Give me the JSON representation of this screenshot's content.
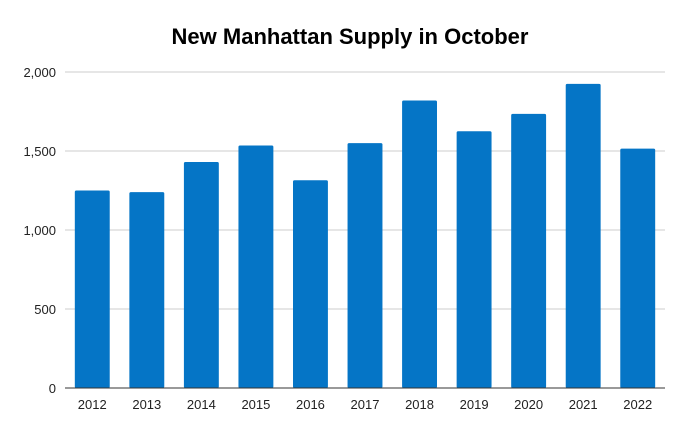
{
  "chart_data": {
    "type": "bar",
    "title": "New Manhattan Supply in October",
    "xlabel": "",
    "ylabel": "",
    "categories": [
      "2012",
      "2013",
      "2014",
      "2015",
      "2016",
      "2017",
      "2018",
      "2019",
      "2020",
      "2021",
      "2022"
    ],
    "values": [
      1250,
      1240,
      1430,
      1535,
      1315,
      1550,
      1820,
      1625,
      1735,
      1925,
      1515
    ],
    "ylim": [
      0,
      2000
    ],
    "yticks": [
      0,
      500,
      1000,
      1500,
      2000
    ],
    "ytick_labels": [
      "0",
      "500",
      "1,000",
      "1,500",
      "2,000"
    ],
    "grid": true,
    "legend": "none",
    "bar_color": "#0575c6"
  }
}
